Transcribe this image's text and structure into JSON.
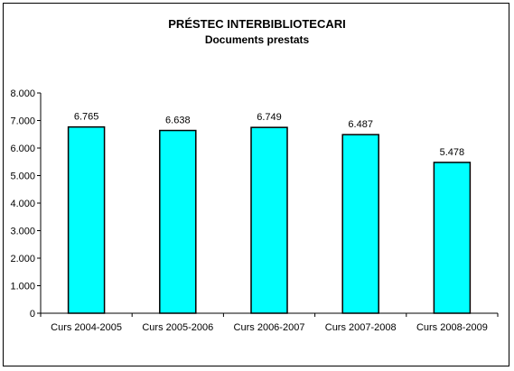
{
  "chart_data": {
    "type": "bar",
    "title": "PRÉSTEC INTERBIBLIOTECARI",
    "subtitle": "Documents prestats",
    "categories": [
      "Curs 2004-2005",
      "Curs 2005-2006",
      "Curs 2006-2007",
      "Curs 2007-2008",
      "Curs 2008-2009"
    ],
    "values": [
      6765,
      6638,
      6749,
      6487,
      5478
    ],
    "value_labels": [
      "6.765",
      "6.638",
      "6.749",
      "6.487",
      "5.478"
    ],
    "yticks": [
      0,
      1000,
      2000,
      3000,
      4000,
      5000,
      6000,
      7000,
      8000
    ],
    "ytick_labels": [
      "0",
      "1.000",
      "2.000",
      "3.000",
      "4.000",
      "5.000",
      "6.000",
      "7.000",
      "8.000"
    ],
    "ylim": [
      0,
      8000
    ],
    "xlabel": "",
    "ylabel": "",
    "grid": false,
    "legend": "none",
    "bar_color": "#00FFFF",
    "bar_edge_color": "#000000"
  }
}
